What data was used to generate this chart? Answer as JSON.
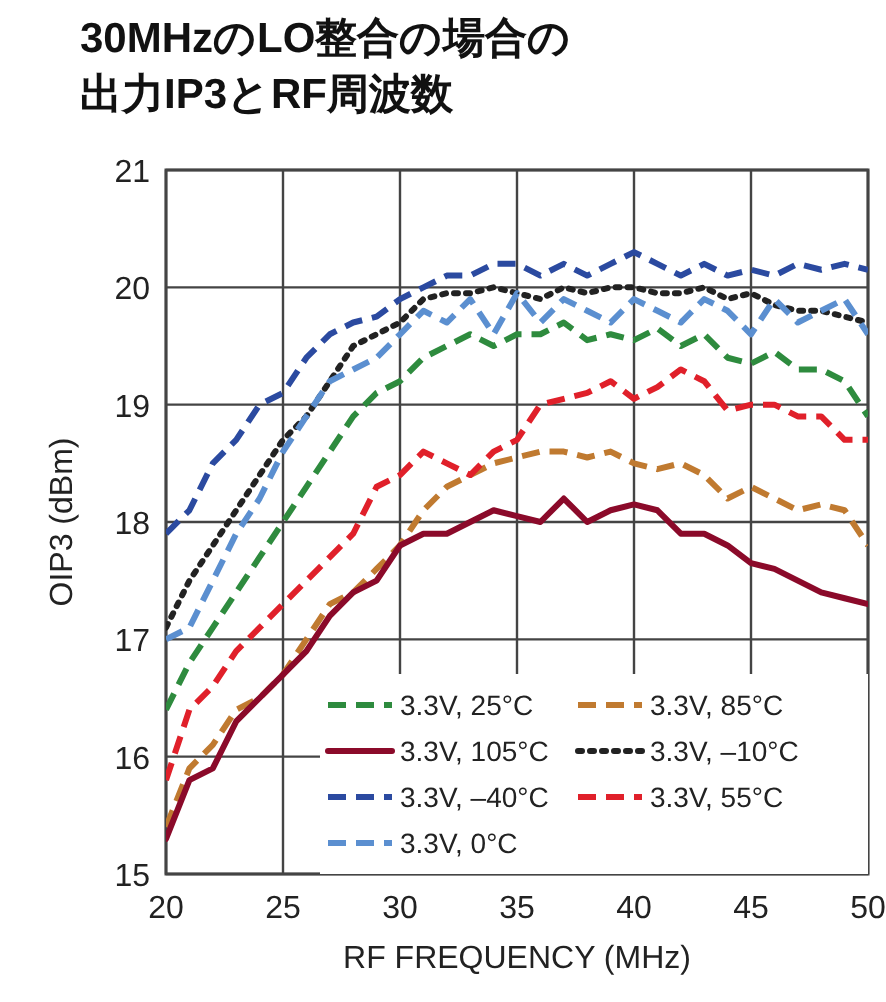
{
  "chart_data": {
    "type": "line",
    "title": "30MHzのLO整合の場合の出力IP3とRF周波数",
    "xlabel": "RF FREQUENCY (MHz)",
    "ylabel": "OIP3 (dBm)",
    "x": [
      20,
      21,
      22,
      23,
      24,
      25,
      26,
      27,
      28,
      29,
      30,
      31,
      32,
      33,
      34,
      35,
      36,
      37,
      38,
      39,
      40,
      41,
      42,
      43,
      44,
      45,
      46,
      47,
      48,
      49,
      50
    ],
    "xlim": [
      20,
      50
    ],
    "xticks": [
      20,
      25,
      30,
      35,
      40,
      45,
      50
    ],
    "ylim": [
      15,
      21
    ],
    "yticks": [
      15,
      16,
      17,
      18,
      19,
      20,
      21
    ],
    "grid": true,
    "legend": "bottom right",
    "marker": "none",
    "series": [
      {
        "name": "3.3V, 25°C",
        "color": "#2e8b3e",
        "line_style": "dashed",
        "values": [
          16.4,
          16.8,
          17.1,
          17.4,
          17.7,
          18.0,
          18.3,
          18.6,
          18.9,
          19.1,
          19.2,
          19.4,
          19.5,
          19.6,
          19.5,
          19.6,
          19.6,
          19.7,
          19.55,
          19.6,
          19.55,
          19.65,
          19.5,
          19.6,
          19.4,
          19.35,
          19.45,
          19.3,
          19.3,
          19.2,
          18.9
        ]
      },
      {
        "name": "3.3V, 85°C",
        "color": "#c07a30",
        "line_style": "dashed",
        "values": [
          15.4,
          15.9,
          16.1,
          16.4,
          16.5,
          16.7,
          17.0,
          17.3,
          17.4,
          17.6,
          17.8,
          18.1,
          18.3,
          18.4,
          18.5,
          18.55,
          18.6,
          18.6,
          18.55,
          18.6,
          18.5,
          18.45,
          18.5,
          18.4,
          18.2,
          18.3,
          18.2,
          18.1,
          18.15,
          18.1,
          17.8
        ]
      },
      {
        "name": "3.3V, 105°C",
        "color": "#8b0a2a",
        "line_style": "solid",
        "values": [
          15.3,
          15.8,
          15.9,
          16.3,
          16.5,
          16.7,
          16.9,
          17.2,
          17.4,
          17.5,
          17.8,
          17.9,
          17.9,
          18.0,
          18.1,
          18.05,
          18.0,
          18.2,
          18.0,
          18.1,
          18.15,
          18.1,
          17.9,
          17.9,
          17.8,
          17.65,
          17.6,
          17.5,
          17.4,
          17.35,
          17.3
        ]
      },
      {
        "name": "3.3V, –10°C",
        "color": "#222222",
        "line_style": "dotted",
        "values": [
          17.1,
          17.5,
          17.8,
          18.1,
          18.4,
          18.7,
          18.9,
          19.2,
          19.5,
          19.6,
          19.7,
          19.9,
          19.95,
          19.95,
          20.0,
          19.95,
          19.9,
          20.0,
          19.95,
          20.0,
          20.0,
          19.95,
          19.95,
          20.0,
          19.9,
          19.95,
          19.85,
          19.8,
          19.8,
          19.75,
          19.7
        ]
      },
      {
        "name": "3.3V, –40°C",
        "color": "#2b4aa0",
        "line_style": "dashed",
        "values": [
          17.9,
          18.1,
          18.5,
          18.7,
          19.0,
          19.1,
          19.4,
          19.6,
          19.7,
          19.75,
          19.9,
          20.0,
          20.1,
          20.1,
          20.2,
          20.2,
          20.1,
          20.2,
          20.1,
          20.2,
          20.3,
          20.2,
          20.1,
          20.2,
          20.1,
          20.15,
          20.1,
          20.2,
          20.15,
          20.2,
          20.15
        ]
      },
      {
        "name": "3.3V, 55°C",
        "color": "#e0202a",
        "line_style": "dashed",
        "values": [
          15.8,
          16.4,
          16.6,
          16.9,
          17.1,
          17.3,
          17.5,
          17.7,
          17.9,
          18.3,
          18.4,
          18.6,
          18.5,
          18.4,
          18.6,
          18.7,
          19.0,
          19.05,
          19.1,
          19.2,
          19.05,
          19.15,
          19.3,
          19.2,
          18.95,
          19.0,
          19.0,
          18.9,
          18.9,
          18.7,
          18.7
        ]
      },
      {
        "name": "3.3V, 0°C",
        "color": "#5b8fd0",
        "line_style": "dashed",
        "values": [
          17.0,
          17.1,
          17.5,
          17.9,
          18.2,
          18.6,
          18.9,
          19.2,
          19.3,
          19.4,
          19.6,
          19.8,
          19.7,
          19.9,
          19.6,
          19.95,
          19.7,
          19.9,
          19.8,
          19.7,
          19.9,
          19.8,
          19.7,
          19.9,
          19.8,
          19.6,
          19.9,
          19.7,
          19.8,
          19.9,
          19.6
        ]
      }
    ]
  }
}
